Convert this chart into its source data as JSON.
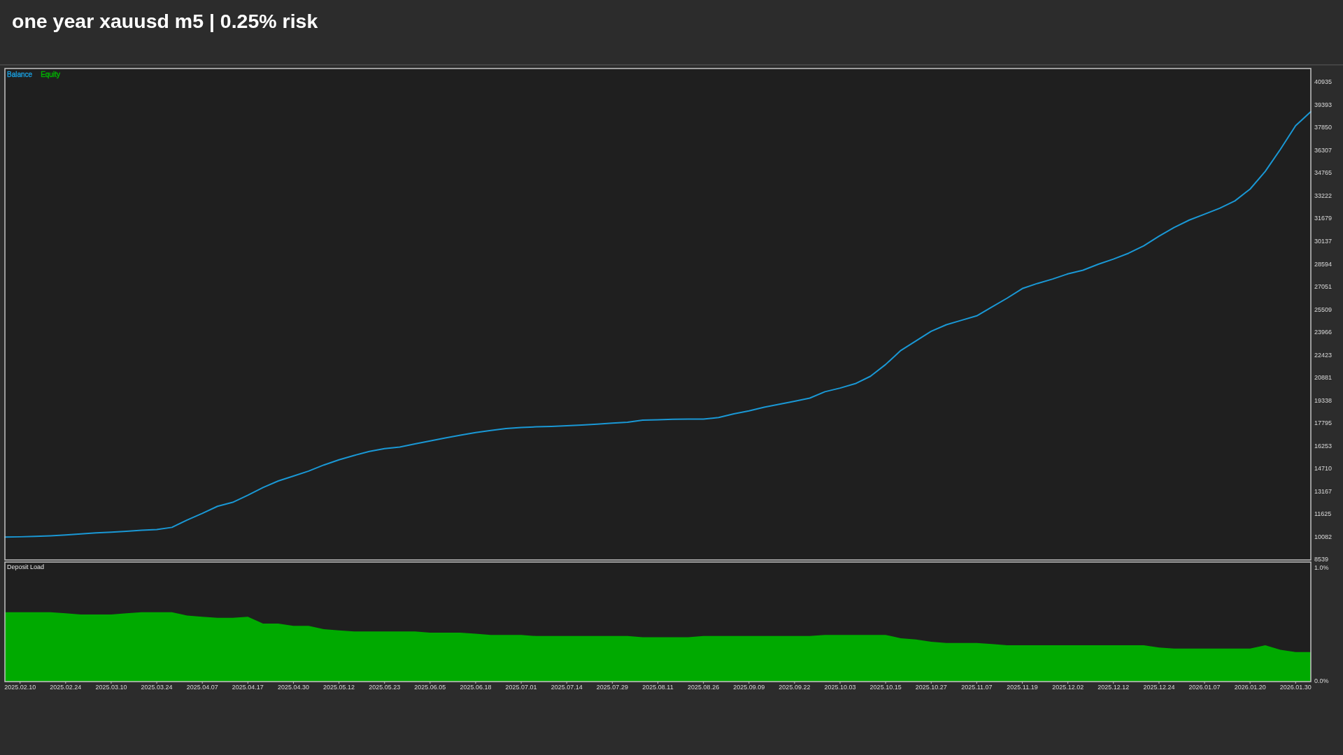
{
  "chart_data": [
    {
      "type": "line",
      "title": "one year xauusd m5 | 0.25% risk",
      "categories": [
        null,
        "2025.02.10",
        null,
        null,
        "2025.02.24",
        null,
        null,
        "2025.03.10",
        null,
        null,
        "2025.03.24",
        null,
        null,
        "2025.04.07",
        null,
        null,
        "2025.04.17",
        null,
        null,
        "2025.04.30",
        null,
        null,
        "2025.05.12",
        null,
        null,
        "2025.05.23",
        null,
        null,
        "2025.06.05",
        null,
        null,
        "2025.06.18",
        null,
        null,
        "2025.07.01",
        null,
        null,
        "2025.07.14",
        null,
        null,
        "2025.07.29",
        null,
        null,
        "2025.08.11",
        null,
        null,
        "2025.08.26",
        null,
        null,
        "2025.09.09",
        null,
        null,
        "2025.09.22",
        null,
        null,
        "2025.10.03",
        null,
        null,
        "2025.10.15",
        null,
        null,
        "2025.10.27",
        null,
        null,
        "2025.11.07",
        null,
        null,
        "2025.11.19",
        null,
        null,
        "2025.12.02",
        null,
        null,
        "2025.12.12",
        null,
        null,
        "2025.12.24",
        null,
        null,
        "2026.01.07",
        null,
        null,
        "2026.01.20",
        null,
        null,
        "2026.01.30",
        null
      ],
      "series": [
        {
          "name": "Balance",
          "color": "#1a98d5",
          "values": [
            10090,
            10110,
            10140,
            10180,
            10230,
            10300,
            10380,
            10430,
            10480,
            10550,
            10600,
            10750,
            11250,
            11700,
            12180,
            12450,
            12930,
            13450,
            13900,
            14230,
            14570,
            14980,
            15330,
            15630,
            15900,
            16090,
            16200,
            16410,
            16610,
            16810,
            17000,
            17180,
            17330,
            17460,
            17530,
            17570,
            17600,
            17640,
            17690,
            17750,
            17820,
            17880,
            18020,
            18050,
            18080,
            18100,
            18100,
            18200,
            18450,
            18650,
            18900,
            19100,
            19300,
            19520,
            19950,
            20200,
            20500,
            21000,
            21800,
            22750,
            23400,
            24050,
            24500,
            24800,
            25100,
            25700,
            26300,
            26950,
            27300,
            27600,
            27950,
            28200,
            28600,
            28950,
            29350,
            29850,
            30500,
            31100,
            31600,
            32000,
            32400,
            32900,
            33700,
            34900,
            36400,
            38000,
            38950
          ]
        },
        {
          "name": "Equity",
          "color": "#00b400",
          "values": [
            null,
            null,
            null,
            null,
            null,
            null,
            null,
            null,
            null,
            null,
            null,
            null,
            null,
            null,
            null,
            null,
            null,
            null,
            null,
            null,
            null,
            null,
            null,
            null,
            null,
            null,
            null,
            null,
            null,
            null,
            null,
            null,
            null,
            null,
            null,
            null,
            null,
            null,
            null,
            null,
            null,
            null,
            null,
            null,
            null,
            null,
            null,
            null,
            null,
            null,
            null,
            null,
            null,
            null,
            null,
            null,
            null,
            null,
            null,
            null,
            null,
            null,
            null,
            null,
            null,
            null,
            null,
            null,
            null,
            null,
            null,
            null,
            null,
            null,
            null,
            null,
            null,
            null,
            null,
            null,
            null,
            null,
            null,
            null,
            null,
            null,
            null
          ]
        }
      ],
      "ylim": [
        8539,
        41880
      ],
      "yticks": [
        8539,
        10082,
        11625,
        13167,
        14710,
        16253,
        17795,
        19338,
        20881,
        22423,
        23966,
        25509,
        27051,
        28594,
        30137,
        31679,
        33222,
        34765,
        36307,
        37850,
        39393,
        40935
      ],
      "tick_labels": "y",
      "legend": "top left"
    },
    {
      "type": "area",
      "title": "Deposit Load",
      "categories": [
        null,
        "2025.02.10",
        null,
        null,
        "2025.02.24",
        null,
        null,
        "2025.03.10",
        null,
        null,
        "2025.03.24",
        null,
        null,
        "2025.04.07",
        null,
        null,
        "2025.04.17",
        null,
        null,
        "2025.04.30",
        null,
        null,
        "2025.05.12",
        null,
        null,
        "2025.05.23",
        null,
        null,
        "2025.06.05",
        null,
        null,
        "2025.06.18",
        null,
        null,
        "2025.07.01",
        null,
        null,
        "2025.07.14",
        null,
        null,
        "2025.07.29",
        null,
        null,
        "2025.08.11",
        null,
        null,
        "2025.08.26",
        null,
        null,
        "2025.09.09",
        null,
        null,
        "2025.09.22",
        null,
        null,
        "2025.10.03",
        null,
        null,
        "2025.10.15",
        null,
        null,
        "2025.10.27",
        null,
        null,
        "2025.11.07",
        null,
        null,
        "2025.11.19",
        null,
        null,
        "2025.12.02",
        null,
        null,
        "2025.12.12",
        null,
        null,
        "2025.12.24",
        null,
        null,
        "2026.01.07",
        null,
        null,
        "2026.01.20",
        null,
        null,
        "2026.01.30",
        null
      ],
      "color": "#00aa00",
      "values": [
        0.61,
        0.61,
        0.61,
        0.61,
        0.6,
        0.59,
        0.59,
        0.59,
        0.6,
        0.61,
        0.61,
        0.61,
        0.58,
        0.57,
        0.56,
        0.56,
        0.57,
        0.51,
        0.51,
        0.49,
        0.49,
        0.46,
        0.45,
        0.44,
        0.44,
        0.44,
        0.44,
        0.44,
        0.43,
        0.43,
        0.43,
        0.42,
        0.41,
        0.41,
        0.41,
        0.4,
        0.4,
        0.4,
        0.4,
        0.4,
        0.4,
        0.4,
        0.39,
        0.39,
        0.39,
        0.39,
        0.4,
        0.4,
        0.4,
        0.4,
        0.4,
        0.4,
        0.4,
        0.4,
        0.41,
        0.41,
        0.41,
        0.41,
        0.41,
        0.38,
        0.37,
        0.35,
        0.34,
        0.34,
        0.34,
        0.33,
        0.32,
        0.32,
        0.32,
        0.32,
        0.32,
        0.32,
        0.32,
        0.32,
        0.32,
        0.32,
        0.3,
        0.29,
        0.29,
        0.29,
        0.29,
        0.29,
        0.29,
        0.32,
        0.28,
        0.26,
        0.26
      ],
      "ylim": [
        0,
        1.05
      ],
      "yticks": [
        {
          "value": 0,
          "label": "0.0%"
        },
        {
          "value": 1,
          "label": "1.0%"
        }
      ]
    }
  ]
}
